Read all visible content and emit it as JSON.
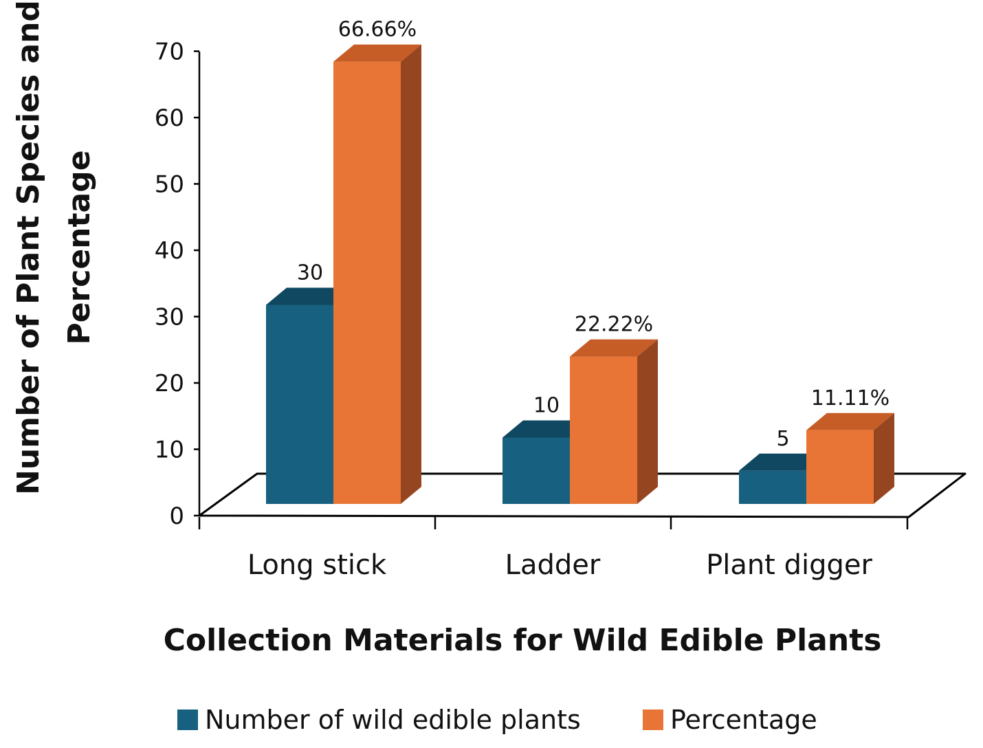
{
  "chart_data": {
    "type": "bar",
    "categories": [
      "Long stick",
      "Ladder",
      "Plant digger"
    ],
    "series": [
      {
        "name": "Number of wild edible plants",
        "values": [
          30,
          10,
          5
        ],
        "labels": [
          "30",
          "10",
          "5"
        ],
        "color": "#17607f",
        "top_color": "#0f4860"
      },
      {
        "name": "Percentage",
        "values": [
          66.66,
          22.22,
          11.11
        ],
        "labels": [
          "66.66%",
          "22.22%",
          "11.11%"
        ],
        "color": "#e87536",
        "top_color": "#c75d26",
        "side_color": "#954621"
      }
    ],
    "yticks": [
      "0",
      "10",
      "20",
      "30",
      "40",
      "50",
      "60",
      "70"
    ],
    "ylim": [
      0,
      70
    ],
    "xlabel": "Collection Materials for Wild Edible Plants",
    "ylabel": [
      "Number of Plant Species and",
      "Percentage"
    ],
    "grid": false,
    "legend": "bottom",
    "style": "3d-clustered-column"
  }
}
